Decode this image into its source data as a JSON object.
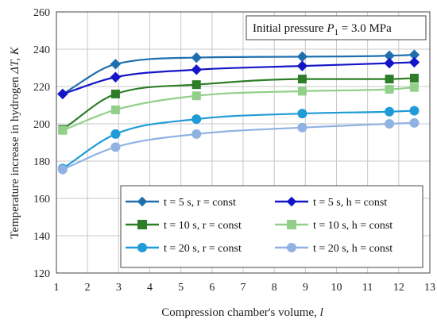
{
  "chart_data": {
    "type": "line",
    "xlabel_text": "Compression chamber's volume, ",
    "xlabel_unit": "l",
    "ylabel_text": "Temperature increase in hydrogen ",
    "ylabel_unit": "ΔT, K",
    "annotation": {
      "prefix": "Initial pressure ",
      "symbol": "P",
      "subscript": "1",
      "suffix": " = 3.0 MPa"
    },
    "xlim": [
      1,
      13
    ],
    "ylim": [
      120,
      260
    ],
    "xticks": [
      "1",
      "2",
      "3",
      "4",
      "5",
      "6",
      "7",
      "8",
      "9",
      "10",
      "11",
      "12",
      "13"
    ],
    "yticks": [
      "120",
      "140",
      "160",
      "180",
      "200",
      "220",
      "240",
      "260"
    ],
    "grid": true,
    "legend_position": "bottom-right",
    "series": [
      {
        "name": "t = 5 s, r = const",
        "color": "#1f6fae",
        "marker": "diamond",
        "x": [
          1.2,
          2.9,
          5.5,
          8.9,
          11.7,
          12.5
        ],
        "y": [
          216,
          232,
          235.5,
          236,
          236.5,
          237
        ]
      },
      {
        "name": "t = 5 s, h = const",
        "color": "#1515c8",
        "marker": "diamond",
        "x": [
          1.2,
          2.9,
          5.5,
          8.9,
          11.7,
          12.5
        ],
        "y": [
          216,
          225,
          229,
          231,
          232.5,
          233
        ]
      },
      {
        "name": "t = 10 s, r = const",
        "color": "#2e7d28",
        "marker": "square",
        "x": [
          1.2,
          2.9,
          5.5,
          8.9,
          11.7,
          12.5
        ],
        "y": [
          197,
          216,
          221,
          224,
          224,
          224.5
        ]
      },
      {
        "name": "t = 10 s, h = const",
        "color": "#92d08a",
        "marker": "square",
        "x": [
          1.2,
          2.9,
          5.5,
          8.9,
          11.7,
          12.5
        ],
        "y": [
          196.5,
          207.5,
          215,
          217.5,
          218.5,
          219.5
        ]
      },
      {
        "name": "t = 20 s, r = const",
        "color": "#1f9bd7",
        "marker": "circle",
        "x": [
          1.2,
          2.9,
          5.5,
          8.9,
          11.7,
          12.5
        ],
        "y": [
          176,
          194.5,
          202.5,
          205.5,
          206.5,
          207
        ]
      },
      {
        "name": "t =  20 s, h = const",
        "color": "#8fb2e3",
        "marker": "circle",
        "x": [
          1.2,
          2.9,
          5.5,
          8.9,
          11.7,
          12.5
        ],
        "y": [
          175.5,
          187.5,
          194.5,
          198,
          200,
          200.5
        ]
      }
    ]
  }
}
